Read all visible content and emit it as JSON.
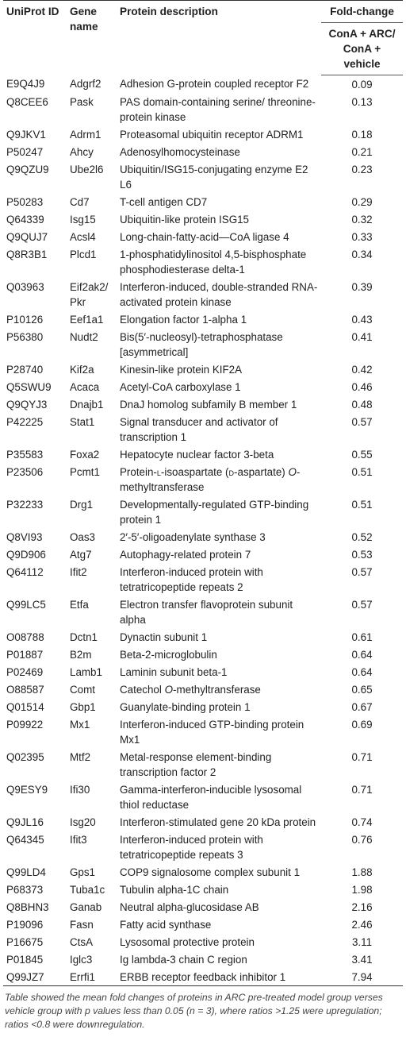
{
  "table": {
    "headers": {
      "uniprot": "UniProt ID",
      "gene": "Gene name",
      "desc": "Protein description",
      "fold": "Fold-change",
      "fold_sub": "ConA + ARC/ ConA + vehicle"
    },
    "rows": [
      {
        "id": "E9Q4J9",
        "gene": "Adgrf2",
        "desc": "Adhesion G-protein coupled receptor F2",
        "val": "0.09"
      },
      {
        "id": "Q8CEE6",
        "gene": "Pask",
        "desc": "PAS domain-containing serine/ threonine-protein kinase",
        "val": "0.13"
      },
      {
        "id": "Q9JKV1",
        "gene": "Adrm1",
        "desc": "Proteasomal ubiquitin receptor ADRM1",
        "val": "0.18"
      },
      {
        "id": "P50247",
        "gene": "Ahcy",
        "desc": "Adenosylhomocysteinase",
        "val": "0.21"
      },
      {
        "id": "Q9QZU9",
        "gene": "Ube2l6",
        "desc": "Ubiquitin/ISG15-conjugating enzyme E2 L6",
        "val": "0.23"
      },
      {
        "id": "P50283",
        "gene": "Cd7",
        "desc": "T-cell antigen CD7",
        "val": "0.29"
      },
      {
        "id": "Q64339",
        "gene": "Isg15",
        "desc": "Ubiquitin-like protein ISG15",
        "val": "0.32"
      },
      {
        "id": "Q9QUJ7",
        "gene": "Acsl4",
        "desc": "Long-chain-fatty-acid—CoA ligase 4",
        "val": "0.33"
      },
      {
        "id": "Q8R3B1",
        "gene": "Plcd1",
        "desc": "1-phosphatidylinositol 4,5-bisphosphate phosphodiesterase delta-1",
        "val": "0.34"
      },
      {
        "id": "Q03963",
        "gene": "Eif2ak2/ Pkr",
        "desc": "Interferon-induced, double-stranded RNA-activated protein kinase",
        "val": "0.39"
      },
      {
        "id": "P10126",
        "gene": "Eef1a1",
        "desc": "Elongation factor 1-alpha 1",
        "val": "0.43"
      },
      {
        "id": "P56380",
        "gene": "Nudt2",
        "desc": "Bis(5′-nucleosyl)-tetraphosphatase [asymmetrical]",
        "val": "0.41"
      },
      {
        "id": "P28740",
        "gene": "Kif2a",
        "desc": "Kinesin-like protein KIF2A",
        "val": "0.42"
      },
      {
        "id": "Q5SWU9",
        "gene": "Acaca",
        "desc": "Acetyl-CoA carboxylase 1",
        "val": "0.46"
      },
      {
        "id": "Q9QYJ3",
        "gene": "Dnajb1",
        "desc": "DnaJ homolog subfamily B member 1",
        "val": "0.48"
      },
      {
        "id": "P42225",
        "gene": "Stat1",
        "desc": "Signal transducer and activator of transcription 1",
        "val": "0.57"
      },
      {
        "id": "P35583",
        "gene": "Foxa2",
        "desc": "Hepatocyte nuclear factor 3-beta",
        "val": "0.55"
      },
      {
        "id": "P23506",
        "gene": "Pcmt1",
        "desc_pre": "Protein-",
        "desc_sc1": "l",
        "desc_mid": "-isoaspartate (",
        "desc_sc2": "d",
        "desc_post": "-aspartate) ",
        "desc_it": "O",
        "desc_end": "-methyltransferase",
        "val": "0.51"
      },
      {
        "id": "P32233",
        "gene": "Drg1",
        "desc": "Developmentally-regulated GTP-binding protein 1",
        "val": "0.51"
      },
      {
        "id": "Q8VI93",
        "gene": "Oas3",
        "desc": "2′-5′-oligoadenylate synthase 3",
        "val": "0.52"
      },
      {
        "id": "Q9D906",
        "gene": "Atg7",
        "desc": "Autophagy-related protein 7",
        "val": "0.53"
      },
      {
        "id": "Q64112",
        "gene": "Ifit2",
        "desc": "Interferon-induced protein with tetratricopeptide repeats 2",
        "val": "0.57"
      },
      {
        "id": "Q99LC5",
        "gene": "Etfa",
        "desc": "Electron transfer flavoprotein subunit alpha",
        "val": "0.57"
      },
      {
        "id": "O08788",
        "gene": "Dctn1",
        "desc": "Dynactin subunit 1",
        "val": "0.61"
      },
      {
        "id": "P01887",
        "gene": "B2m",
        "desc": "Beta-2-microglobulin",
        "val": "0.64"
      },
      {
        "id": "P02469",
        "gene": "Lamb1",
        "desc": "Laminin subunit beta-1",
        "val": "0.64"
      },
      {
        "id": "O88587",
        "gene": "Comt",
        "desc_pre": "Catechol ",
        "desc_it": "O",
        "desc_end": "-methyltransferase",
        "val": "0.65"
      },
      {
        "id": "Q01514",
        "gene": "Gbp1",
        "desc": "Guanylate-binding protein 1",
        "val": "0.67"
      },
      {
        "id": "P09922",
        "gene": "Mx1",
        "desc": "Interferon-induced GTP-binding protein Mx1",
        "val": "0.69"
      },
      {
        "id": "Q02395",
        "gene": "Mtf2",
        "desc": "Metal-response element-binding transcription factor 2",
        "val": "0.71"
      },
      {
        "id": "Q9ESY9",
        "gene": "Ifi30",
        "desc": "Gamma-interferon-inducible lysosomal thiol reductase",
        "val": "0.71"
      },
      {
        "id": "Q9JL16",
        "gene": "Isg20",
        "desc": "Interferon-stimulated gene 20 kDa protein",
        "val": "0.74"
      },
      {
        "id": "Q64345",
        "gene": "Ifit3",
        "desc": "Interferon-induced protein with tetratricopeptide repeats 3",
        "val": "0.76"
      },
      {
        "id": "Q99LD4",
        "gene": "Gps1",
        "desc": "COP9 signalosome complex subunit 1",
        "val": "1.88"
      },
      {
        "id": "P68373",
        "gene": "Tuba1c",
        "desc": "Tubulin alpha-1C chain",
        "val": "1.98"
      },
      {
        "id": "Q8BHN3",
        "gene": "Ganab",
        "desc": "Neutral alpha-glucosidase AB",
        "val": "2.16"
      },
      {
        "id": "P19096",
        "gene": "Fasn",
        "desc": "Fatty acid synthase",
        "val": "2.46"
      },
      {
        "id": "P16675",
        "gene": "CtsA",
        "desc": "Lysosomal protective protein",
        "val": "3.11"
      },
      {
        "id": "P01845",
        "gene": "Iglc3",
        "desc": "Ig lambda-3 chain C region",
        "val": "3.41"
      },
      {
        "id": "Q99JZ7",
        "gene": "Errfi1",
        "desc": "ERBB receptor feedback inhibitor 1",
        "val": "7.94"
      }
    ]
  },
  "footnote": "Table showed the mean fold changes of proteins in ARC pre-treated model group verses vehicle group with p values less than 0.05 (n = 3), where ratios >1.25 were upregulation; ratios <0.8 were downregulation."
}
